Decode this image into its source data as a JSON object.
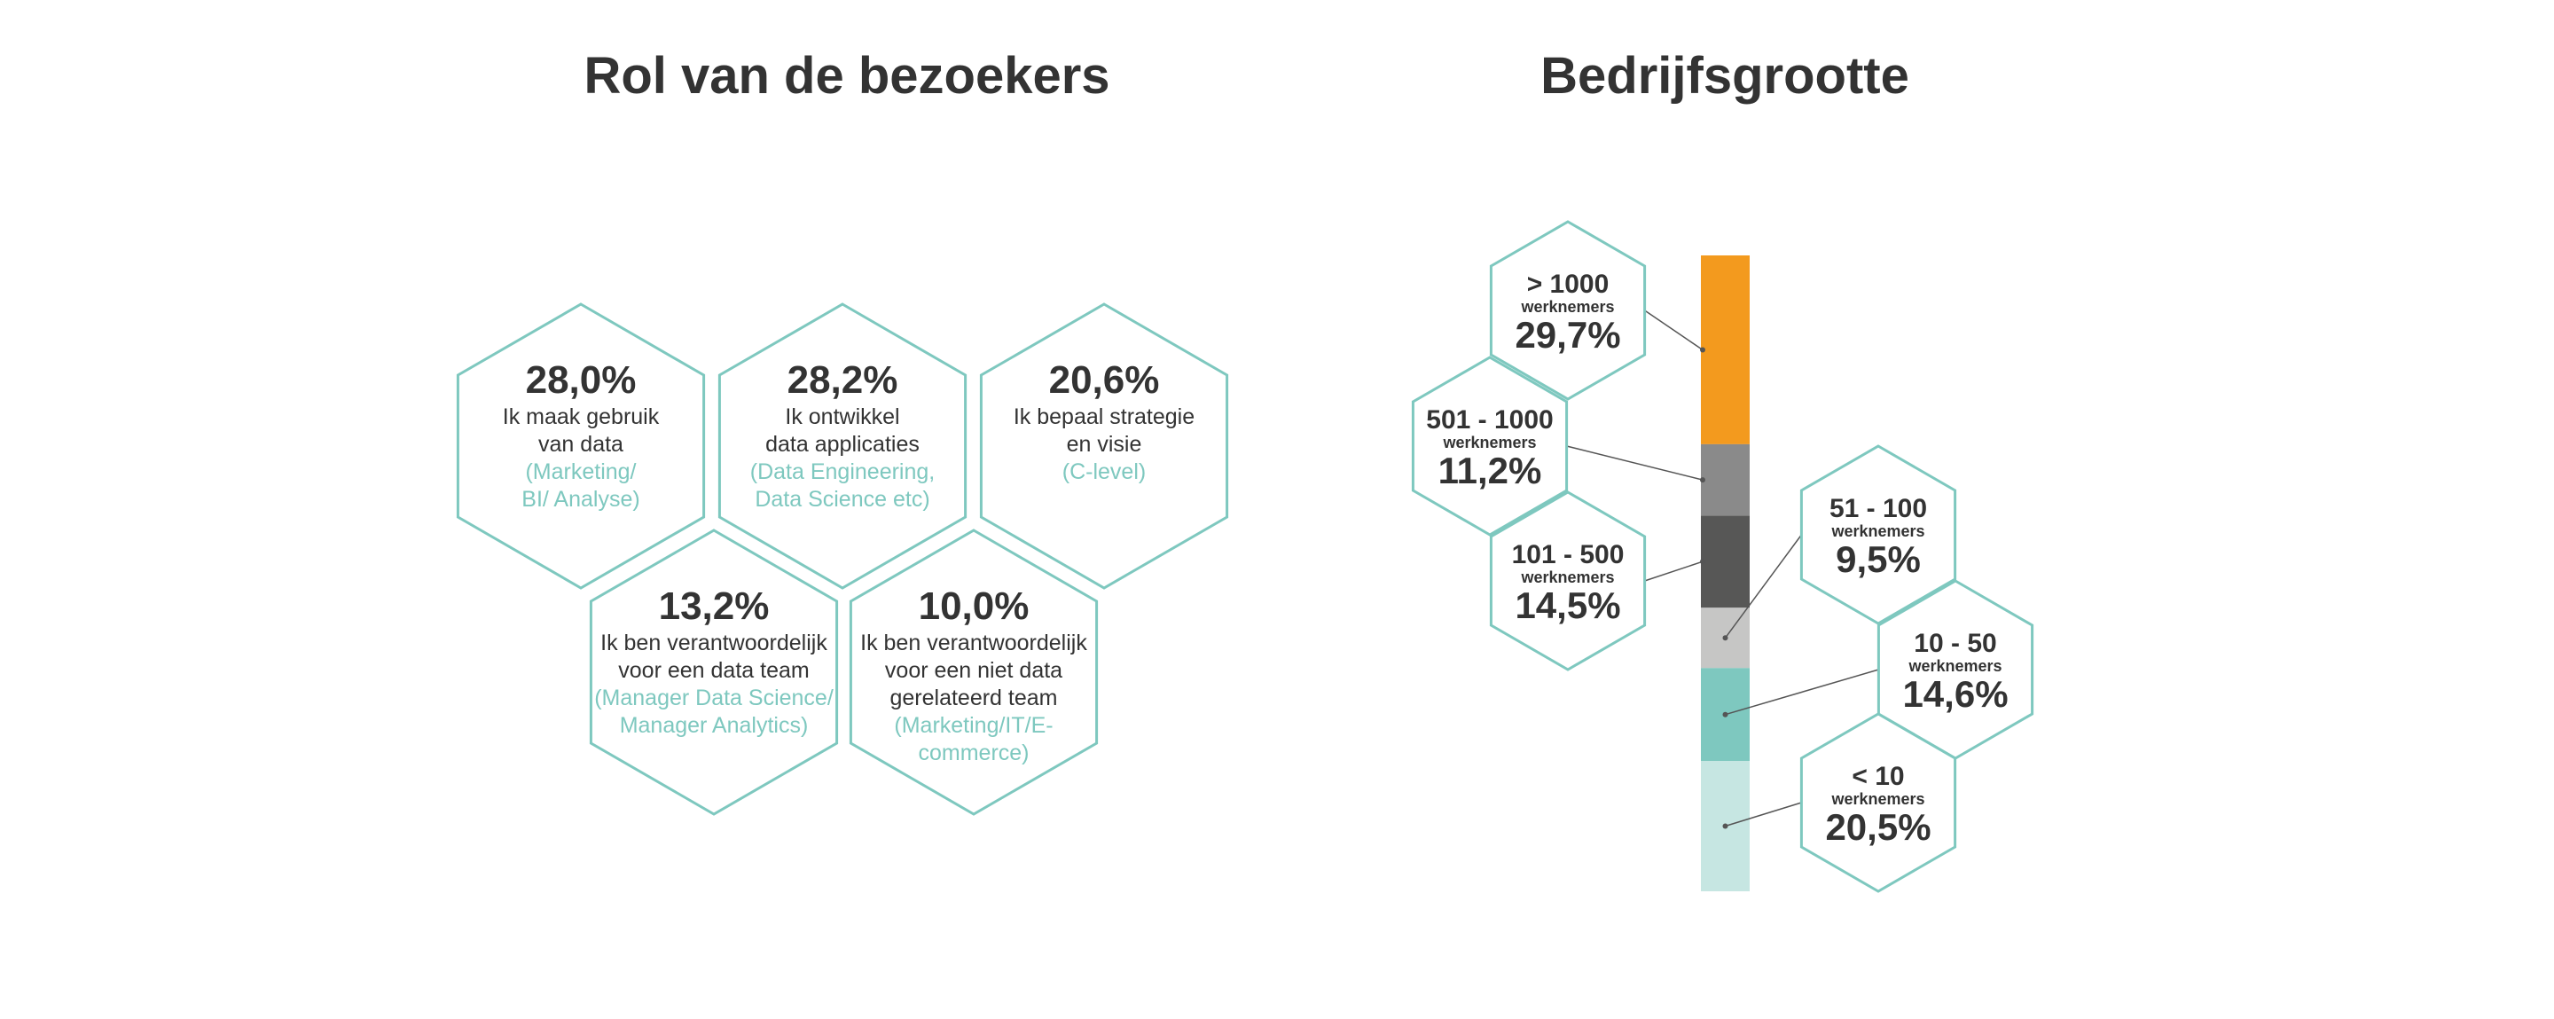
{
  "colors": {
    "hex_border": "#7ec8bf",
    "text": "#333333",
    "detail": "#7ec8bf",
    "highlight": "#f39a1e"
  },
  "chart_data": [
    {
      "type": "table",
      "title": "Rol van de bezoekers",
      "items": [
        {
          "value": "28,0%",
          "lines": [
            "Ik maak gebruik",
            "van data"
          ],
          "detail": [
            "(Marketing/",
            "BI/ Analyse)"
          ],
          "highlight": false
        },
        {
          "value": "28,2%",
          "lines": [
            "Ik ontwikkel",
            "data applicaties"
          ],
          "detail": [
            "(Data Engineering,",
            "Data Science etc)"
          ],
          "highlight": false
        },
        {
          "value": "20,6%",
          "lines": [
            "Ik bepaal strategie",
            "en visie"
          ],
          "detail": [
            "(C-level)"
          ],
          "highlight": true
        },
        {
          "value": "13,2%",
          "lines": [
            "Ik ben verantwoordelijk",
            "voor een data team"
          ],
          "detail": [
            "(Manager Data Science/",
            "Manager Analytics)"
          ],
          "highlight": false
        },
        {
          "value": "10,0%",
          "lines": [
            "Ik ben verantwoordelijk",
            "voor een niet data",
            "gerelateerd team"
          ],
          "detail": [
            "(Marketing/IT/E-",
            "commerce)"
          ],
          "highlight": false
        }
      ]
    },
    {
      "type": "bar",
      "title": "Bedrijfsgrootte",
      "unit_label": "werknemers",
      "categories": [
        "> 1000",
        "501 - 1000",
        "101 - 500",
        "51 - 100",
        "10 - 50",
        "< 10"
      ],
      "values": [
        29.7,
        11.2,
        14.5,
        9.5,
        14.6,
        20.5
      ],
      "value_labels": [
        "29,7%",
        "11,2%",
        "14,5%",
        "9,5%",
        "14,6%",
        "20,5%"
      ],
      "segment_colors": [
        "#f39a1e",
        "#8a8a8a",
        "#575756",
        "#c6c6c5",
        "#7ec8bf",
        "#c6e6e2"
      ]
    }
  ]
}
